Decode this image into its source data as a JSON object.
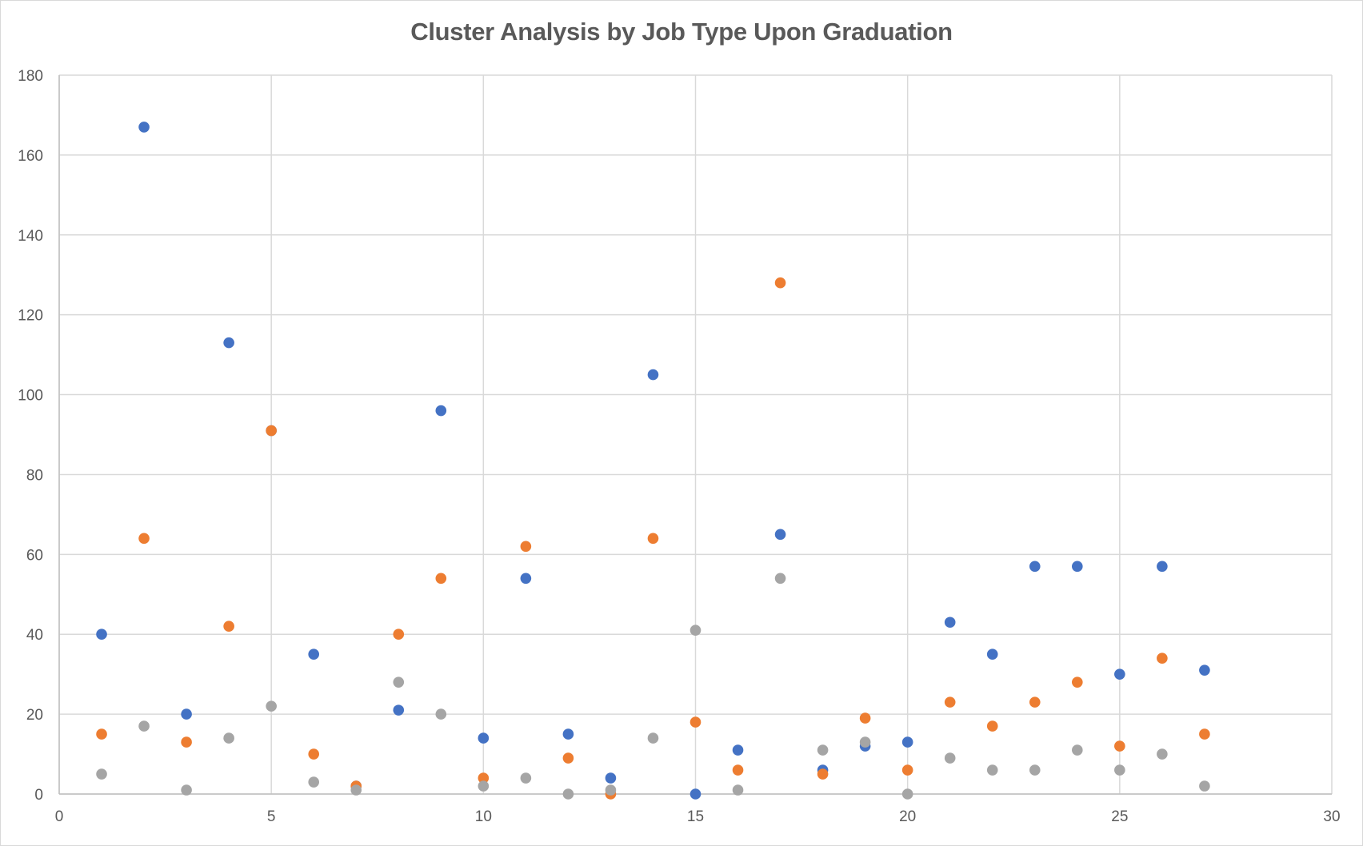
{
  "chart_data": {
    "type": "scatter",
    "title": "Cluster Analysis by Job Type Upon Graduation",
    "xlabel": "",
    "ylabel": "",
    "xlim": [
      0,
      30
    ],
    "ylim": [
      0,
      180
    ],
    "x_ticks": [
      0,
      5,
      10,
      15,
      20,
      25,
      30
    ],
    "y_ticks": [
      0,
      20,
      40,
      60,
      80,
      100,
      120,
      140,
      160,
      180
    ],
    "grid": true,
    "legend": "none",
    "x": [
      1,
      2,
      3,
      4,
      5,
      6,
      7,
      8,
      9,
      10,
      11,
      12,
      13,
      14,
      15,
      16,
      17,
      18,
      19,
      20,
      21,
      22,
      23,
      24,
      25,
      26,
      27
    ],
    "series": [
      {
        "color": "#4472c4",
        "values": [
          40,
          167,
          20,
          113,
          91,
          35,
          2,
          21,
          96,
          14,
          54,
          15,
          4,
          105,
          0,
          11,
          65,
          6,
          12,
          13,
          43,
          35,
          57,
          57,
          30,
          57,
          31
        ]
      },
      {
        "color": "#ed7d31",
        "values": [
          15,
          64,
          13,
          42,
          91,
          10,
          2,
          40,
          54,
          4,
          62,
          9,
          0,
          64,
          18,
          6,
          128,
          5,
          19,
          6,
          23,
          17,
          23,
          28,
          12,
          34,
          15
        ]
      },
      {
        "color": "#a5a5a5",
        "values": [
          5,
          17,
          1,
          14,
          22,
          3,
          1,
          28,
          20,
          2,
          4,
          0,
          1,
          14,
          41,
          1,
          54,
          11,
          13,
          0,
          9,
          6,
          6,
          11,
          6,
          10,
          2
        ]
      }
    ]
  }
}
